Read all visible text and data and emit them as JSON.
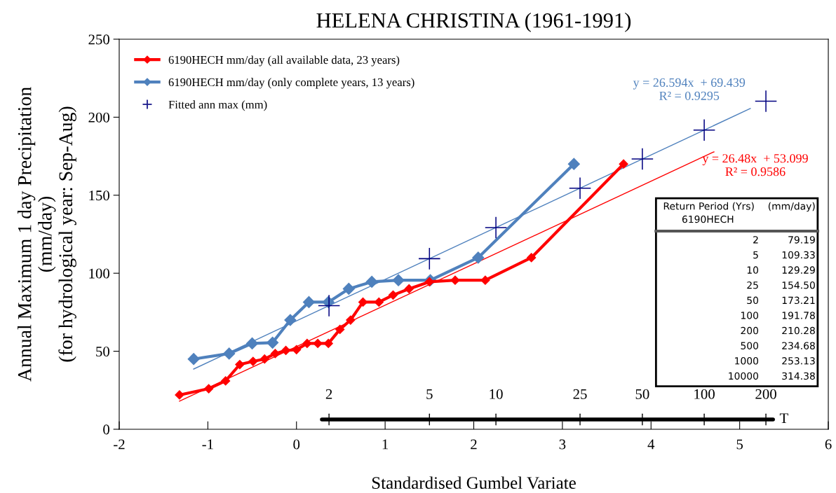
{
  "chart_data": {
    "type": "line",
    "title": "HELENA CHRISTINA (1961-1991)",
    "xlabel": "Standardised Gumbel Variate",
    "ylabel": "Annual Maximum 1 day Precipitation\n(mm/day)\n(for hydrological year: Sep-Aug)",
    "xlim": [
      -2,
      6
    ],
    "xticks": [
      -2,
      -1,
      0,
      1,
      2,
      3,
      4,
      5,
      6
    ],
    "ylim": [
      0,
      250
    ],
    "yticks": [
      0,
      50,
      100,
      150,
      200,
      250
    ],
    "grid": false,
    "legend": "top left",
    "series": [
      {
        "name": "6190HECH mm/day (all available data, 23 years)",
        "color": "#ff0000",
        "marker": "diamond",
        "x": [
          -1.32,
          -0.99,
          -0.8,
          -0.64,
          -0.49,
          -0.36,
          -0.24,
          -0.12,
          0.0,
          0.12,
          0.24,
          0.36,
          0.49,
          0.61,
          0.75,
          0.93,
          1.09,
          1.27,
          1.5,
          1.79,
          2.13,
          2.65,
          3.69
        ],
        "values": [
          22,
          26,
          31,
          41.5,
          43.5,
          45,
          48.5,
          50.5,
          51,
          55,
          55,
          55,
          64,
          70,
          81.5,
          81.5,
          86,
          90,
          94.5,
          95.5,
          95.5,
          110,
          170
        ]
      },
      {
        "name": "6190HECH mm/day (only complete years, 13 years)",
        "color": "#4f81bd",
        "marker": "diamond",
        "x": [
          -1.16,
          -0.76,
          -0.5,
          -0.27,
          -0.07,
          0.14,
          0.36,
          0.59,
          0.85,
          1.15,
          1.51,
          2.05,
          3.13
        ],
        "values": [
          45,
          48.5,
          55,
          55.5,
          70,
          81.5,
          81.5,
          90,
          94.5,
          95.5,
          95.5,
          110,
          170
        ]
      },
      {
        "name": "Fitted ann max (mm)",
        "type": "scatter",
        "color": "#000080",
        "marker": "cross",
        "x": [
          0.367,
          1.5,
          2.25,
          3.199,
          3.902,
          4.6,
          5.296
        ],
        "values": [
          79.19,
          109.33,
          129.29,
          154.5,
          173.21,
          191.78,
          210.28
        ]
      },
      {
        "color": "#4f81bd",
        "marker": "none",
        "x": [
          -1.16,
          5.12
        ],
        "values": [
          38.6,
          205.6
        ]
      },
      {
        "color": "#ff0000",
        "marker": "none",
        "x": [
          -1.32,
          4.71
        ],
        "values": [
          18.0,
          177.8
        ]
      }
    ],
    "annotations": [
      {
        "text": "y = 26.594x  + 69.439\nR² = 0.9295",
        "x": 5.12,
        "y": 205.6
      },
      {
        "text": "y = 26.48x  + 53.099\nR² = 0.9586",
        "x": 4.71,
        "y": 177.8
      },
      "2",
      "5",
      "10",
      "25",
      "50",
      "100",
      "200",
      "T",
      "Return Period (Yrs)\n      6190HECH",
      "(mm/day)",
      "2",
      "79.19",
      "5",
      "109.33",
      "10",
      "129.29",
      "25",
      "154.50",
      "50",
      "173.21",
      "100",
      "191.78",
      "200",
      "210.28",
      "500",
      "234.68",
      "1000",
      "253.13",
      "10000",
      "314.38"
    ]
  }
}
